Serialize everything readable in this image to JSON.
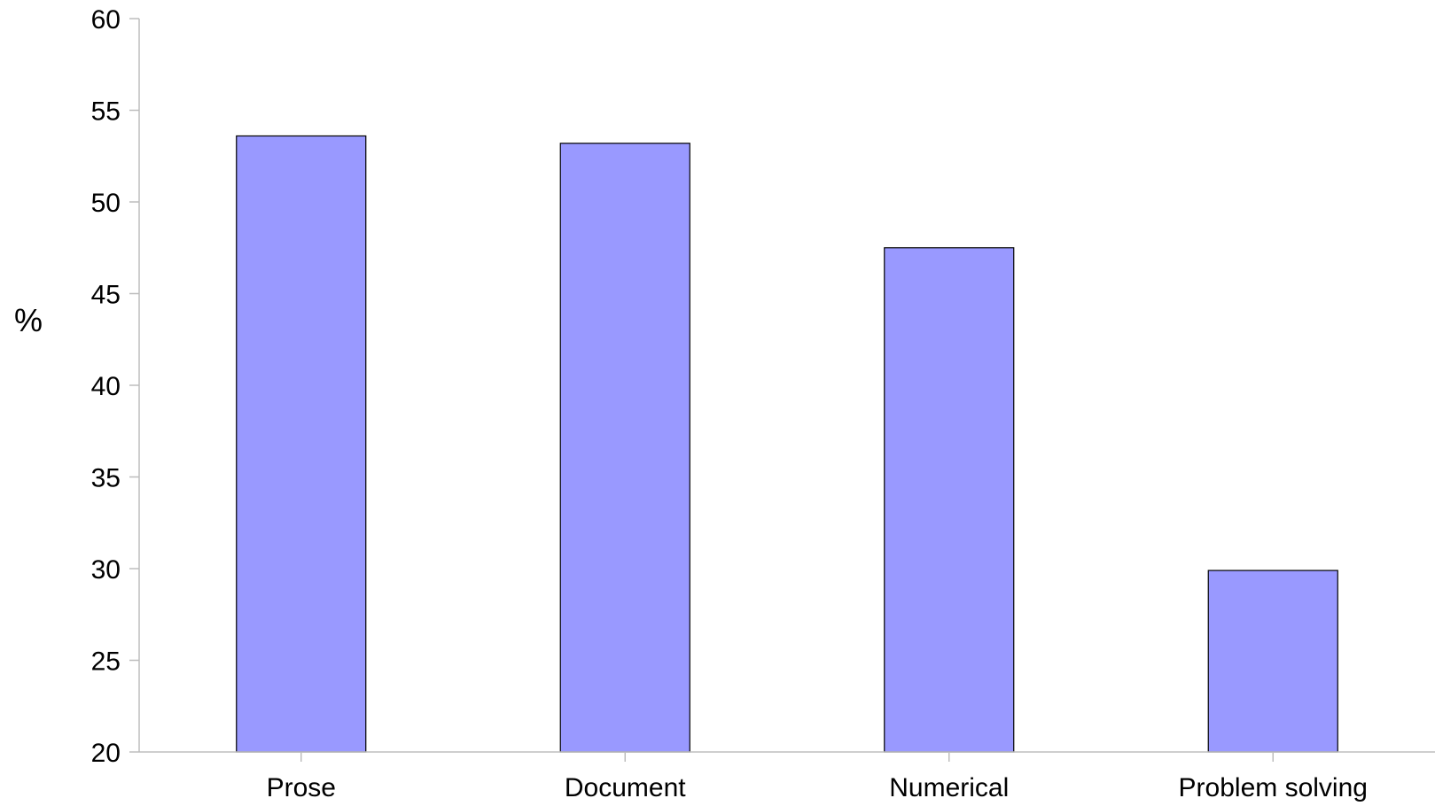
{
  "chart_data": {
    "type": "bar",
    "title": "",
    "xlabel": "",
    "ylabel": "%",
    "categories": [
      "Prose",
      "Document",
      "Numerical",
      "Problem solving"
    ],
    "values": [
      53.6,
      53.2,
      47.5,
      29.9
    ],
    "ylim": [
      20,
      60
    ],
    "yticks": [
      20,
      25,
      30,
      35,
      40,
      45,
      50,
      55,
      60
    ],
    "grid": false,
    "legend": "none",
    "bar_color": "#9999ff",
    "bar_edge_color": "#000000",
    "axis_color": "#bdbdbd"
  }
}
